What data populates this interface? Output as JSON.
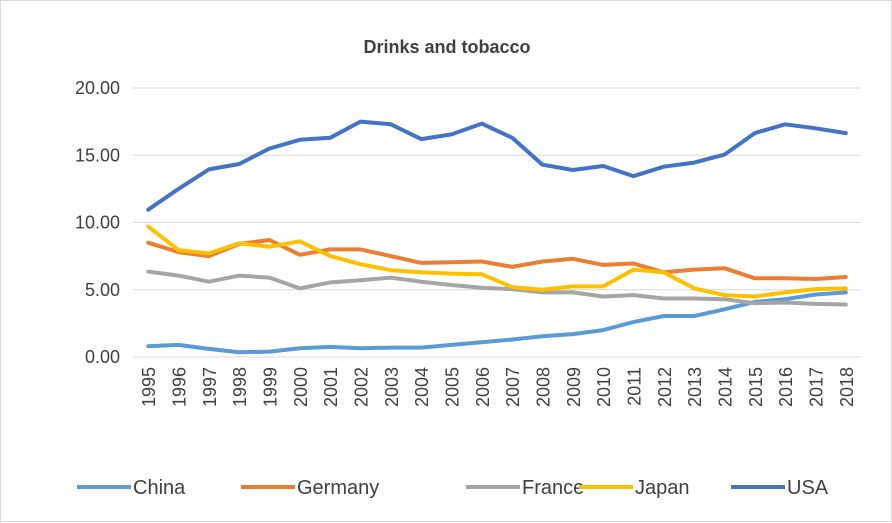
{
  "chart_data": {
    "type": "line",
    "title": "Drinks and tobacco",
    "xlabel": "",
    "ylabel": "",
    "ylim": [
      0,
      20
    ],
    "yticks": [
      "0.00",
      "5.00",
      "10.00",
      "15.00",
      "20.00"
    ],
    "grid": true,
    "legend_position": "bottom",
    "categories": [
      "1995",
      "1996",
      "1997",
      "1998",
      "1999",
      "2000",
      "2001",
      "2002",
      "2003",
      "2004",
      "2005",
      "2006",
      "2007",
      "2008",
      "2009",
      "2010",
      "2011",
      "2012",
      "2013",
      "2014",
      "2015",
      "2016",
      "2017",
      "2018"
    ],
    "series": [
      {
        "name": "China",
        "color": "#5B9BD5",
        "values": [
          0.8,
          0.9,
          0.6,
          0.35,
          0.4,
          0.65,
          0.75,
          0.65,
          0.7,
          0.7,
          0.9,
          1.1,
          1.3,
          1.55,
          1.7,
          2.0,
          2.6,
          3.05,
          3.05,
          3.55,
          4.1,
          4.3,
          4.65,
          4.8
        ]
      },
      {
        "name": "Germany",
        "color": "#ED7D31",
        "values": [
          8.5,
          7.8,
          7.5,
          8.4,
          8.7,
          7.6,
          8.0,
          8.0,
          7.5,
          7.0,
          7.05,
          7.1,
          6.7,
          7.1,
          7.3,
          6.85,
          6.95,
          6.3,
          6.5,
          6.6,
          5.85,
          5.85,
          5.8,
          5.95
        ]
      },
      {
        "name": "France",
        "color": "#A5A5A5",
        "values": [
          6.35,
          6.05,
          5.6,
          6.05,
          5.9,
          5.1,
          5.55,
          5.7,
          5.9,
          5.6,
          5.35,
          5.15,
          5.05,
          4.8,
          4.8,
          4.5,
          4.6,
          4.35,
          4.35,
          4.3,
          4.0,
          4.05,
          3.95,
          3.9
        ]
      },
      {
        "name": "Japan",
        "color": "#FFC000",
        "values": [
          9.7,
          7.95,
          7.7,
          8.45,
          8.2,
          8.6,
          7.5,
          6.9,
          6.45,
          6.3,
          6.2,
          6.15,
          5.2,
          5.0,
          5.25,
          5.25,
          6.5,
          6.3,
          5.1,
          4.6,
          4.5,
          4.8,
          5.05,
          5.1
        ]
      },
      {
        "name": "USA",
        "color": "#4472C4",
        "values": [
          10.95,
          12.5,
          13.95,
          14.35,
          15.5,
          16.15,
          16.3,
          17.5,
          17.3,
          16.2,
          16.55,
          17.35,
          16.3,
          14.3,
          13.9,
          14.2,
          13.45,
          14.15,
          14.45,
          15.05,
          16.65,
          17.3,
          17.0,
          16.65
        ]
      }
    ]
  }
}
